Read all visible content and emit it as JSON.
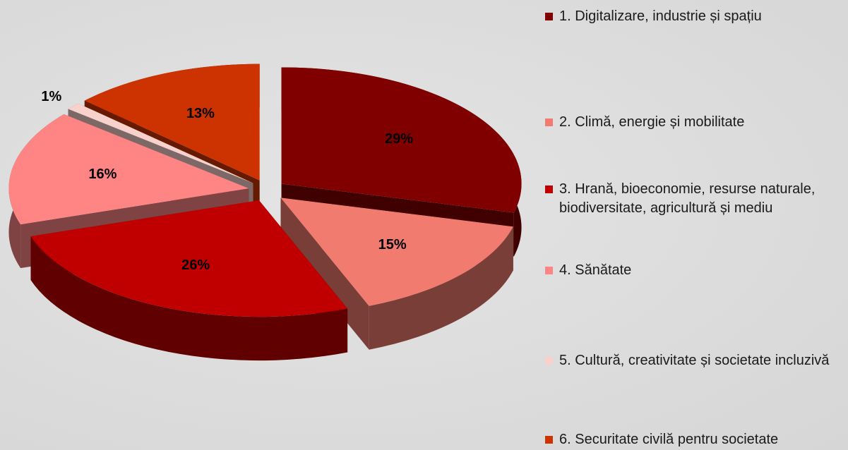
{
  "chart_data": {
    "type": "pie",
    "categories": [
      "1. Digitalizare, industrie și spațiu",
      "2. Climă, energie și mobilitate",
      "3. Hrană, bioeconomie, resurse naturale, biodiversitate, agricultură și mediu",
      "4. Sănătate",
      "5. Cultură, creativitate și societate incluzivă",
      "6. Securitate civilă pentru societate"
    ],
    "values": [
      29,
      15,
      26,
      16,
      1,
      13
    ],
    "value_labels": [
      "29%",
      "15%",
      "26%",
      "16%",
      "1%",
      "13%"
    ],
    "colors": [
      "#800000",
      "#f27b70",
      "#c00000",
      "#ff8585",
      "#f8d0cc",
      "#cc3300"
    ],
    "legend": "right"
  }
}
